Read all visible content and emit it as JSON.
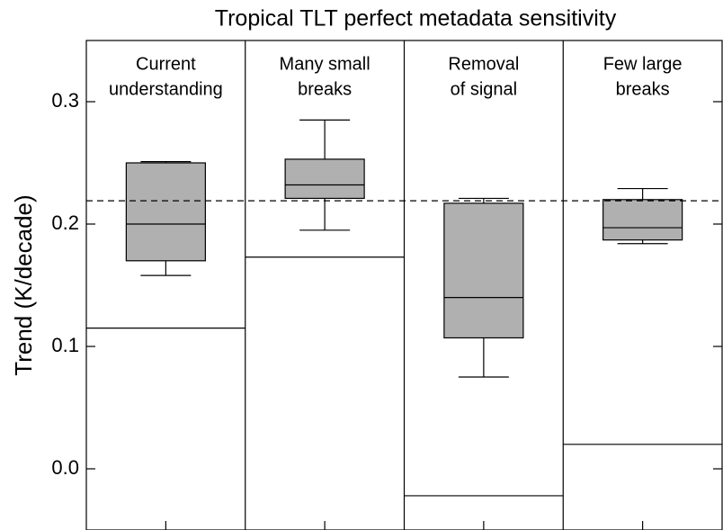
{
  "chart_data": {
    "type": "box",
    "title": "Tropical TLT perfect metadata sensitivity",
    "ylabel": "Trend (K/decade)",
    "categories": [
      [
        "Current",
        "understanding"
      ],
      [
        "Many small",
        "breaks"
      ],
      [
        "Removal",
        "of signal"
      ],
      [
        "Few large",
        "breaks"
      ]
    ],
    "boxes": [
      {
        "whislo": 0.158,
        "q1": 0.17,
        "med": 0.2,
        "q3": 0.25,
        "whishi": 0.251
      },
      {
        "whislo": 0.195,
        "q1": 0.221,
        "med": 0.232,
        "q3": 0.253,
        "whishi": 0.285
      },
      {
        "whislo": 0.075,
        "q1": 0.107,
        "med": 0.14,
        "q3": 0.217,
        "whishi": 0.221
      },
      {
        "whislo": 0.184,
        "q1": 0.187,
        "med": 0.197,
        "q3": 0.22,
        "whishi": 0.229
      }
    ],
    "reference_values": [
      0.115,
      0.173,
      -0.022,
      0.02
    ],
    "dashed_line": 0.219,
    "color": "#b0b0b0",
    "ylim": [
      -0.05,
      0.35
    ],
    "yticks": [
      {
        "value": 0,
        "label": "0.0"
      },
      0.1,
      0.2,
      0.3
    ]
  }
}
